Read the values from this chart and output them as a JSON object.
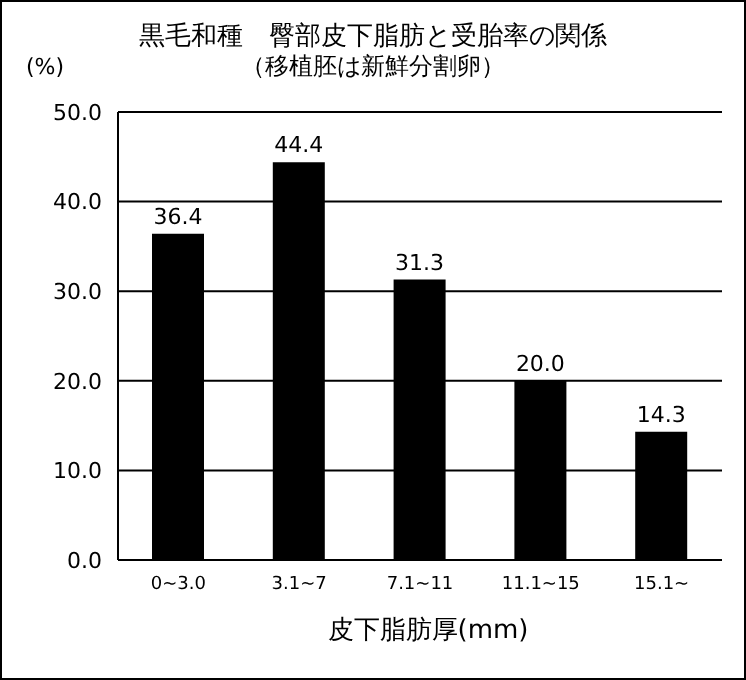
{
  "chart_data": {
    "type": "bar",
    "title": "黒毛和種　臀部皮下脂肪と受胎率の関係",
    "subtitle": "（移植胚は新鮮分割卵）",
    "ylabel": "(%)",
    "xlabel": "皮下脂肪厚(mm)",
    "categories": [
      "0~3.0",
      "3.1~7",
      "7.1~11",
      "11.1~15",
      "15.1~"
    ],
    "values": [
      36.4,
      44.4,
      31.3,
      20.0,
      14.3
    ],
    "color": "#000000",
    "value_labels": [
      "36.4",
      "44.4",
      "31.3",
      "20.0",
      "14.3"
    ],
    "ylim": [
      0,
      50
    ],
    "yticks": [
      {
        "value": 0,
        "label": "0.0"
      },
      {
        "value": 10,
        "label": "10.0"
      },
      {
        "value": 20,
        "label": "20.0"
      },
      {
        "value": 30,
        "label": "30.0"
      },
      {
        "value": 40,
        "label": "40.0"
      },
      {
        "value": 50,
        "label": "50.0"
      }
    ],
    "grid": "y"
  }
}
